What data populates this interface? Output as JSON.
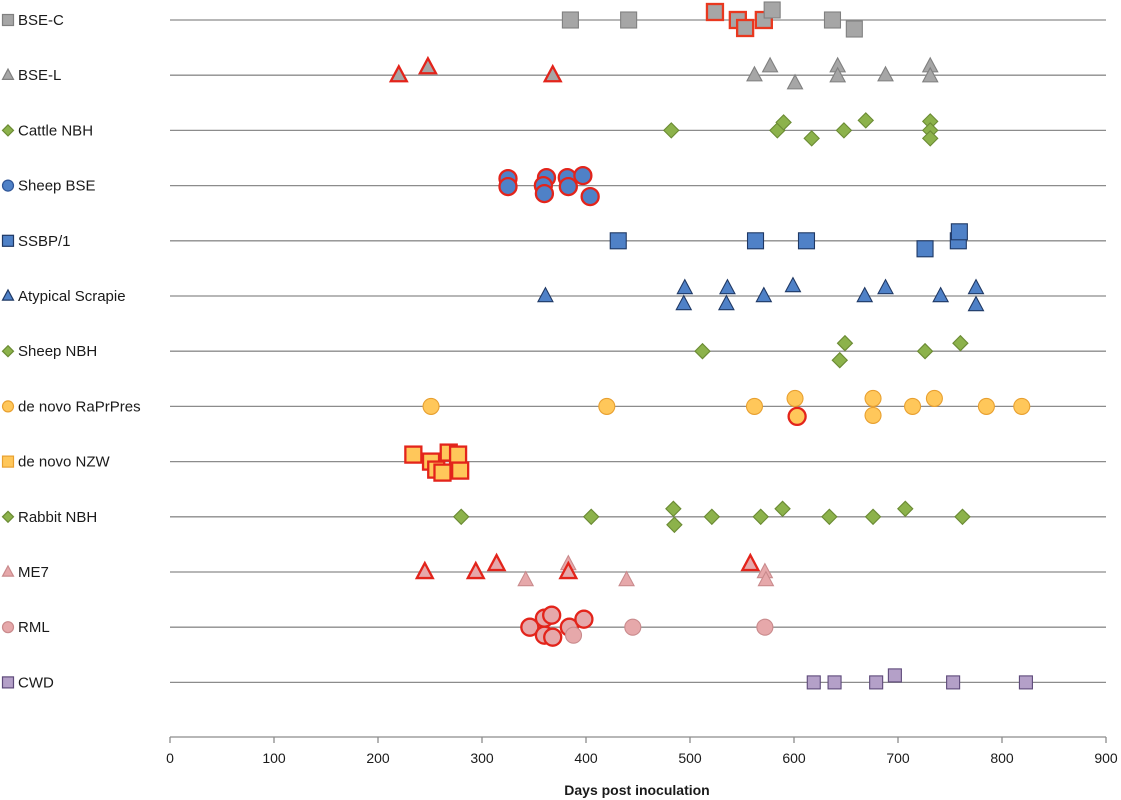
{
  "chart_data": {
    "type": "scatter",
    "title": "",
    "xlabel": "Days post inoculation",
    "ylabel": "",
    "xlim": [
      0,
      900
    ],
    "x_ticks": [
      0,
      100,
      200,
      300,
      400,
      500,
      600,
      700,
      800,
      900
    ],
    "x_tick_labels": [
      "0",
      "100",
      "200",
      "300",
      "400",
      "500",
      "600",
      "700",
      "800",
      "900"
    ],
    "grid": false,
    "legend": "category labels at left with marker symbols",
    "series": [
      {
        "name": "BSE-C",
        "marker": "square",
        "fill": "#a6a6a6",
        "stroke": "#808080",
        "points": [
          {
            "x": 385,
            "off": 0,
            "hl": false
          },
          {
            "x": 441,
            "off": 0,
            "hl": false
          },
          {
            "x": 524,
            "off": -8,
            "hl": true
          },
          {
            "x": 546,
            "off": 0,
            "hl": true
          },
          {
            "x": 553,
            "off": 8,
            "hl": true
          },
          {
            "x": 571,
            "off": 0,
            "hl": true
          },
          {
            "x": 579,
            "off": -10,
            "hl": false
          },
          {
            "x": 637,
            "off": 0,
            "hl": false
          },
          {
            "x": 658,
            "off": 9,
            "hl": false
          }
        ]
      },
      {
        "name": "BSE-L",
        "marker": "triangle",
        "fill": "#a6a6a6",
        "stroke": "#808080",
        "points": [
          {
            "x": 220,
            "off": 0,
            "hl": true
          },
          {
            "x": 248,
            "off": -8,
            "hl": true
          },
          {
            "x": 368,
            "off": 0,
            "hl": true
          },
          {
            "x": 562,
            "off": 0,
            "hl": false
          },
          {
            "x": 577,
            "off": -9,
            "hl": false
          },
          {
            "x": 601,
            "off": 8,
            "hl": false
          },
          {
            "x": 642,
            "off": -9,
            "hl": false
          },
          {
            "x": 642,
            "off": 1,
            "hl": false
          },
          {
            "x": 688,
            "off": 0,
            "hl": false
          },
          {
            "x": 731,
            "off": -9,
            "hl": false
          },
          {
            "x": 731,
            "off": 1,
            "hl": false
          }
        ]
      },
      {
        "name": "Cattle NBH",
        "marker": "diamond",
        "fill": "#8cb24b",
        "stroke": "#6b8b34",
        "points": [
          {
            "x": 482,
            "off": 0,
            "hl": false
          },
          {
            "x": 584,
            "off": 0,
            "hl": false
          },
          {
            "x": 590,
            "off": -8,
            "hl": false
          },
          {
            "x": 617,
            "off": 8,
            "hl": false
          },
          {
            "x": 648,
            "off": 0,
            "hl": false
          },
          {
            "x": 669,
            "off": -10,
            "hl": false
          },
          {
            "x": 731,
            "off": -9,
            "hl": false
          },
          {
            "x": 731,
            "off": 0,
            "hl": false
          },
          {
            "x": 731,
            "off": 8,
            "hl": false
          }
        ]
      },
      {
        "name": "Sheep BSE",
        "marker": "circle",
        "fill": "#4f81c7",
        "stroke": "#2f5597",
        "points": [
          {
            "x": 325,
            "off": -7,
            "hl": true
          },
          {
            "x": 325,
            "off": 1,
            "hl": true
          },
          {
            "x": 362,
            "off": -8,
            "hl": true
          },
          {
            "x": 359,
            "off": 0,
            "hl": true
          },
          {
            "x": 360,
            "off": 8,
            "hl": true
          },
          {
            "x": 382,
            "off": -8,
            "hl": true
          },
          {
            "x": 383,
            "off": 1,
            "hl": true
          },
          {
            "x": 397,
            "off": -10,
            "hl": true
          },
          {
            "x": 404,
            "off": 11,
            "hl": true
          }
        ]
      },
      {
        "name": "SSBP/1",
        "marker": "square",
        "fill": "#4f81c7",
        "stroke": "#1f3864",
        "points": [
          {
            "x": 431,
            "off": 0,
            "hl": false
          },
          {
            "x": 563,
            "off": 0,
            "hl": false
          },
          {
            "x": 612,
            "off": 0,
            "hl": false
          },
          {
            "x": 726,
            "off": 8,
            "hl": false
          },
          {
            "x": 758,
            "off": 0,
            "hl": false
          },
          {
            "x": 759,
            "off": -9,
            "hl": false
          }
        ]
      },
      {
        "name": "Atypical Scrapie",
        "marker": "triangle",
        "fill": "#4f81c7",
        "stroke": "#1f3864",
        "points": [
          {
            "x": 361,
            "off": 0,
            "hl": false
          },
          {
            "x": 495,
            "off": -8,
            "hl": false
          },
          {
            "x": 494,
            "off": 8,
            "hl": false
          },
          {
            "x": 536,
            "off": -8,
            "hl": false
          },
          {
            "x": 535,
            "off": 8,
            "hl": false
          },
          {
            "x": 571,
            "off": 0,
            "hl": false
          },
          {
            "x": 599,
            "off": -10,
            "hl": false
          },
          {
            "x": 668,
            "off": 0,
            "hl": false
          },
          {
            "x": 688,
            "off": -8,
            "hl": false
          },
          {
            "x": 741,
            "off": 0,
            "hl": false
          },
          {
            "x": 775,
            "off": -8,
            "hl": false
          },
          {
            "x": 775,
            "off": 9,
            "hl": false
          }
        ]
      },
      {
        "name": "Sheep NBH",
        "marker": "diamond",
        "fill": "#8cb24b",
        "stroke": "#6b8b34",
        "points": [
          {
            "x": 512,
            "off": 0,
            "hl": false
          },
          {
            "x": 649,
            "off": -8,
            "hl": false
          },
          {
            "x": 644,
            "off": 9,
            "hl": false
          },
          {
            "x": 726,
            "off": 0,
            "hl": false
          },
          {
            "x": 760,
            "off": -8,
            "hl": false
          }
        ]
      },
      {
        "name": "de novo RaPrPres",
        "marker": "circle",
        "fill": "#ffc75a",
        "stroke": "#e8a030",
        "points": [
          {
            "x": 251,
            "off": 0,
            "hl": false
          },
          {
            "x": 420,
            "off": 0,
            "hl": false
          },
          {
            "x": 562,
            "off": 0,
            "hl": false
          },
          {
            "x": 601,
            "off": -8,
            "hl": false
          },
          {
            "x": 603,
            "off": 10,
            "hl": true
          },
          {
            "x": 676,
            "off": -8,
            "hl": false
          },
          {
            "x": 676,
            "off": 9,
            "hl": false
          },
          {
            "x": 714,
            "off": 0,
            "hl": false
          },
          {
            "x": 735,
            "off": -8,
            "hl": false
          },
          {
            "x": 785,
            "off": 0,
            "hl": false
          },
          {
            "x": 819,
            "off": 0,
            "hl": false
          }
        ]
      },
      {
        "name": "de novo NZW",
        "marker": "square",
        "fill": "#ffc75a",
        "stroke": "#e8a030",
        "points": [
          {
            "x": 234,
            "off": -7,
            "hl": true
          },
          {
            "x": 251,
            "off": 0,
            "hl": true
          },
          {
            "x": 256,
            "off": 8,
            "hl": true
          },
          {
            "x": 262,
            "off": 11,
            "hl": true
          },
          {
            "x": 268,
            "off": -9,
            "hl": true
          },
          {
            "x": 277,
            "off": -7,
            "hl": true
          },
          {
            "x": 279,
            "off": 9,
            "hl": true
          }
        ]
      },
      {
        "name": "Rabbit NBH",
        "marker": "diamond",
        "fill": "#8cb24b",
        "stroke": "#6b8b34",
        "points": [
          {
            "x": 280,
            "off": 0,
            "hl": false
          },
          {
            "x": 405,
            "off": 0,
            "hl": false
          },
          {
            "x": 484,
            "off": -8,
            "hl": false
          },
          {
            "x": 485,
            "off": 8,
            "hl": false
          },
          {
            "x": 521,
            "off": 0,
            "hl": false
          },
          {
            "x": 568,
            "off": 0,
            "hl": false
          },
          {
            "x": 589,
            "off": -8,
            "hl": false
          },
          {
            "x": 634,
            "off": 0,
            "hl": false
          },
          {
            "x": 676,
            "off": 0,
            "hl": false
          },
          {
            "x": 707,
            "off": -8,
            "hl": false
          },
          {
            "x": 762,
            "off": 0,
            "hl": false
          }
        ]
      },
      {
        "name": "ME7",
        "marker": "triangle",
        "fill": "#e6a8aa",
        "stroke": "#c98a8c",
        "points": [
          {
            "x": 245,
            "off": 0,
            "hl": true
          },
          {
            "x": 294,
            "off": 0,
            "hl": true
          },
          {
            "x": 314,
            "off": -8,
            "hl": true
          },
          {
            "x": 342,
            "off": 8,
            "hl": false
          },
          {
            "x": 383,
            "off": -8,
            "hl": false
          },
          {
            "x": 383,
            "off": 0,
            "hl": true
          },
          {
            "x": 439,
            "off": 8,
            "hl": false
          },
          {
            "x": 558,
            "off": -8,
            "hl": true
          },
          {
            "x": 572,
            "off": 0,
            "hl": false
          },
          {
            "x": 573,
            "off": 8,
            "hl": false
          }
        ]
      },
      {
        "name": "RML",
        "marker": "circle",
        "fill": "#e6a8aa",
        "stroke": "#c98a8c",
        "points": [
          {
            "x": 346,
            "off": 0,
            "hl": true
          },
          {
            "x": 360,
            "off": -9,
            "hl": true
          },
          {
            "x": 360,
            "off": 8,
            "hl": true
          },
          {
            "x": 367,
            "off": -12,
            "hl": true
          },
          {
            "x": 368,
            "off": 10,
            "hl": true
          },
          {
            "x": 384,
            "off": 0,
            "hl": true
          },
          {
            "x": 388,
            "off": 8,
            "hl": false
          },
          {
            "x": 398,
            "off": -8,
            "hl": true
          },
          {
            "x": 445,
            "off": 0,
            "hl": false
          },
          {
            "x": 572,
            "off": 0,
            "hl": false
          }
        ]
      },
      {
        "name": "CWD",
        "marker": "square",
        "fill": "#b4a0c8",
        "stroke": "#5e4a7a",
        "points": [
          {
            "x": 619,
            "off": 0,
            "hl": false
          },
          {
            "x": 639,
            "off": 0,
            "hl": false
          },
          {
            "x": 679,
            "off": 0,
            "hl": false
          },
          {
            "x": 697,
            "off": -7,
            "hl": false
          },
          {
            "x": 753,
            "off": 0,
            "hl": false
          },
          {
            "x": 823,
            "off": 0,
            "hl": false
          }
        ]
      }
    ],
    "highlight_stroke": "#e3241b",
    "highlight_stroke_bse_c": "#e9381f"
  }
}
